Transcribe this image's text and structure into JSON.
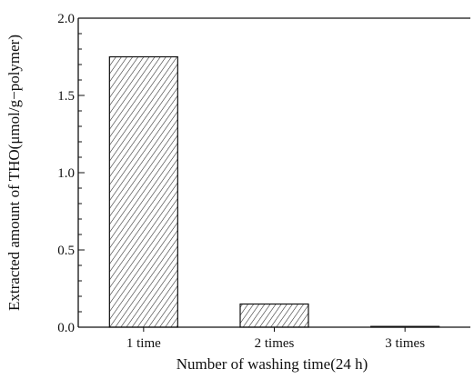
{
  "chart_data": {
    "type": "bar",
    "categories": [
      "1 time",
      "2 times",
      "3 times"
    ],
    "values": [
      1.75,
      0.15,
      0.005
    ],
    "xlabel": "Number of washing time(24 h)",
    "ylabel": "Extracted amount of THO(μmol/g−polymer)",
    "ylim": [
      0,
      2.0
    ],
    "yticks": [
      "0.0",
      "0.5",
      "1.0",
      "1.5",
      "2.0"
    ],
    "bar_fill": "hatched",
    "grid": false
  },
  "colors": {
    "axis": "#111111",
    "bar_stroke": "#111111",
    "hatch": "#222222",
    "background": "#ffffff"
  }
}
